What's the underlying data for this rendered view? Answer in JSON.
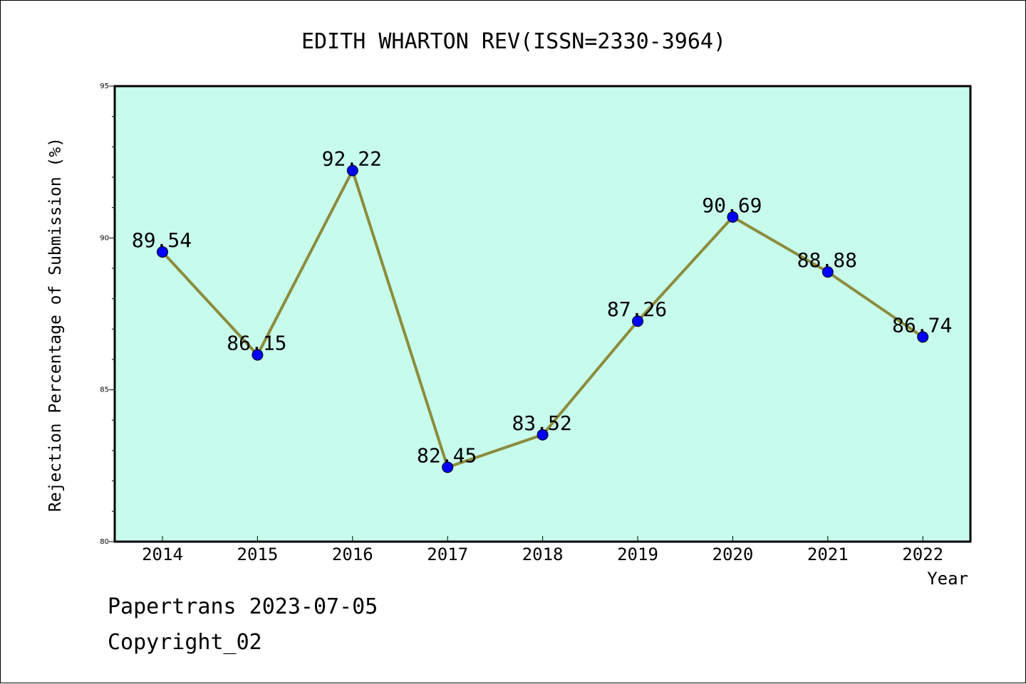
{
  "colors": {
    "plot_background": "#c7fcec",
    "line": "#8c8c3c",
    "marker": "#0000ff",
    "axis": "#000000",
    "page_background": "#ffffff"
  },
  "footer": {
    "source_line": "Papertrans 2023-07-05",
    "copyright_line": "Copyright_02"
  },
  "chart_data": {
    "type": "line",
    "title": "EDITH WHARTON REV(ISSN=2330-3964)",
    "xlabel": "Year",
    "ylabel": "Rejection Percentage of Submission (%)",
    "categories": [
      "2014",
      "2015",
      "2016",
      "2017",
      "2018",
      "2019",
      "2020",
      "2021",
      "2022"
    ],
    "series": [
      {
        "values": [
          89.54,
          86.15,
          92.22,
          82.45,
          83.52,
          87.26,
          90.69,
          88.88,
          86.74
        ],
        "data_labels": [
          "89.54",
          "86.15",
          "92.22",
          "82.45",
          "83.52",
          "87.26",
          "90.69",
          "88.88",
          "86.74"
        ]
      }
    ],
    "ylim": [
      80,
      95
    ],
    "yticks": [
      80,
      85,
      90,
      95
    ],
    "ytick_labels": [
      "80",
      "85",
      "90",
      "95"
    ],
    "minor_ytick_step": 1,
    "grid": false,
    "legend": "none"
  }
}
